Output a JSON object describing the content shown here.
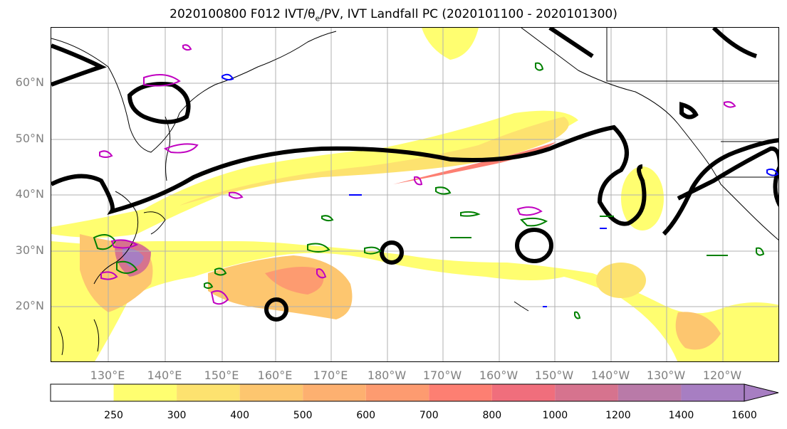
{
  "title": {
    "prefix": "2020100800 F012 IVT/θ",
    "sub": "e",
    "suffix": "/PV, IVT Landfall PC (2020101100 - 2020101300)"
  },
  "axes": {
    "lat_labels": [
      "60°N",
      "50°N",
      "40°N",
      "30°N",
      "20°N"
    ],
    "lon_labels": [
      "130°E",
      "140°E",
      "150°E",
      "160°E",
      "170°E",
      "180°W",
      "170°W",
      "160°W",
      "150°W",
      "140°W",
      "130°W",
      "120°W"
    ]
  },
  "colorbar": {
    "levels": [
      "250",
      "300",
      "400",
      "500",
      "600",
      "700",
      "800",
      "1000",
      "1200",
      "1400",
      "1600"
    ],
    "colors": [
      "#ffffff",
      "#fffe70",
      "#fde26f",
      "#fdc66f",
      "#fdb070",
      "#fd9b70",
      "#fd7f72",
      "#f06e7c",
      "#d6738e",
      "#b97aa8",
      "#a77ec2"
    ],
    "extend": "max"
  },
  "contour_colors": {
    "pc_contour": "#000000",
    "theta_e": "#008000",
    "pv": "#c000c0",
    "ivt_low": "#0000ff"
  }
}
